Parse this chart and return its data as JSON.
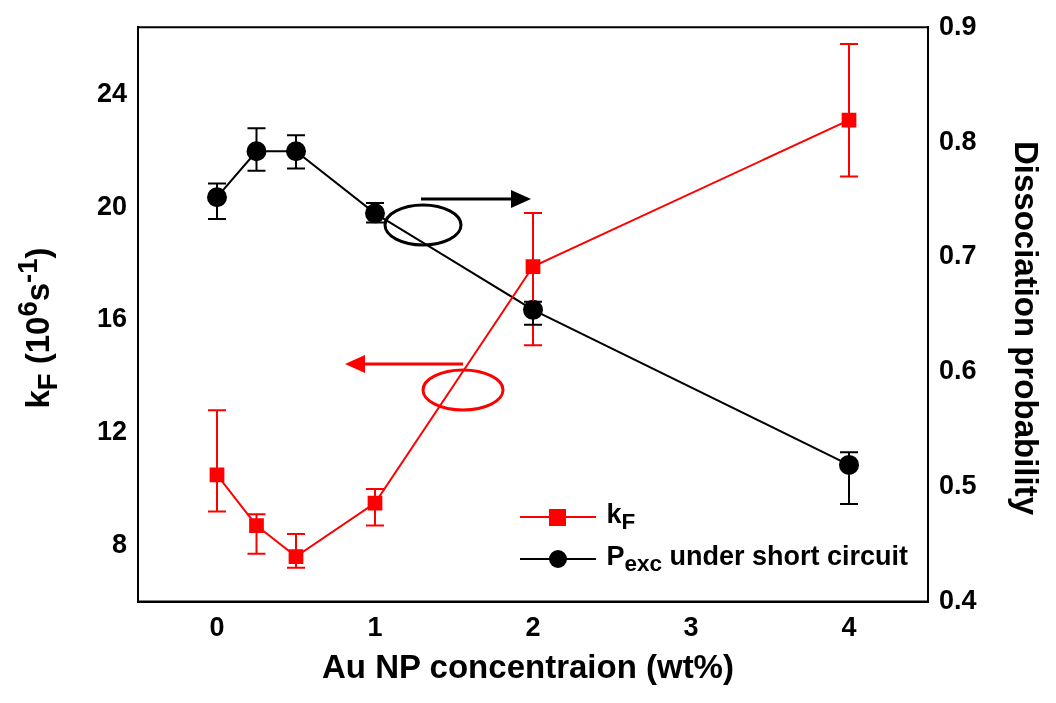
{
  "chart_data": {
    "type": "line",
    "xlabel": "Au NP concentraion (wt%)",
    "ylabel": "k$_{F}$ (10$^{6}$s$^{-1}$)",
    "y2label": "Dissociation probability",
    "x": [
      0,
      0.25,
      0.5,
      1,
      2,
      4
    ],
    "xlim": [
      -0.5,
      4.5
    ],
    "xticks": [
      0,
      1,
      2,
      3,
      4
    ],
    "ylim": [
      6,
      26.4
    ],
    "yticks": [
      8,
      12,
      16,
      20,
      24
    ],
    "y2lim": [
      0.4,
      0.9
    ],
    "y2ticks": [
      0.4,
      0.5,
      0.6,
      0.7,
      0.8,
      0.9
    ],
    "grid": false,
    "legend": "bottom right",
    "series": [
      {
        "name": "k$_{F}$",
        "color": "#ff0000",
        "marker": "square",
        "axis": "y",
        "values": [
          10.5,
          8.7,
          7.6,
          9.5,
          17.9,
          23.1
        ],
        "errors": [
          [
            9.2,
            12.8
          ],
          [
            7.7,
            9.1
          ],
          [
            7.2,
            8.4
          ],
          [
            8.7,
            10.0
          ],
          [
            15.1,
            19.8
          ],
          [
            21.1,
            25.8
          ]
        ]
      },
      {
        "name": "P$_{exc}$ under short circuit",
        "color": "#000000",
        "marker": "circle",
        "axis": "y2",
        "values": [
          0.752,
          0.792,
          0.792,
          0.738,
          0.654,
          0.519
        ],
        "errors": [
          [
            0.733,
            0.764
          ],
          [
            0.775,
            0.812
          ],
          [
            0.777,
            0.806
          ],
          [
            0.73,
            0.747
          ],
          [
            0.641,
            0.661
          ],
          [
            0.485,
            0.53
          ]
        ]
      }
    ]
  }
}
